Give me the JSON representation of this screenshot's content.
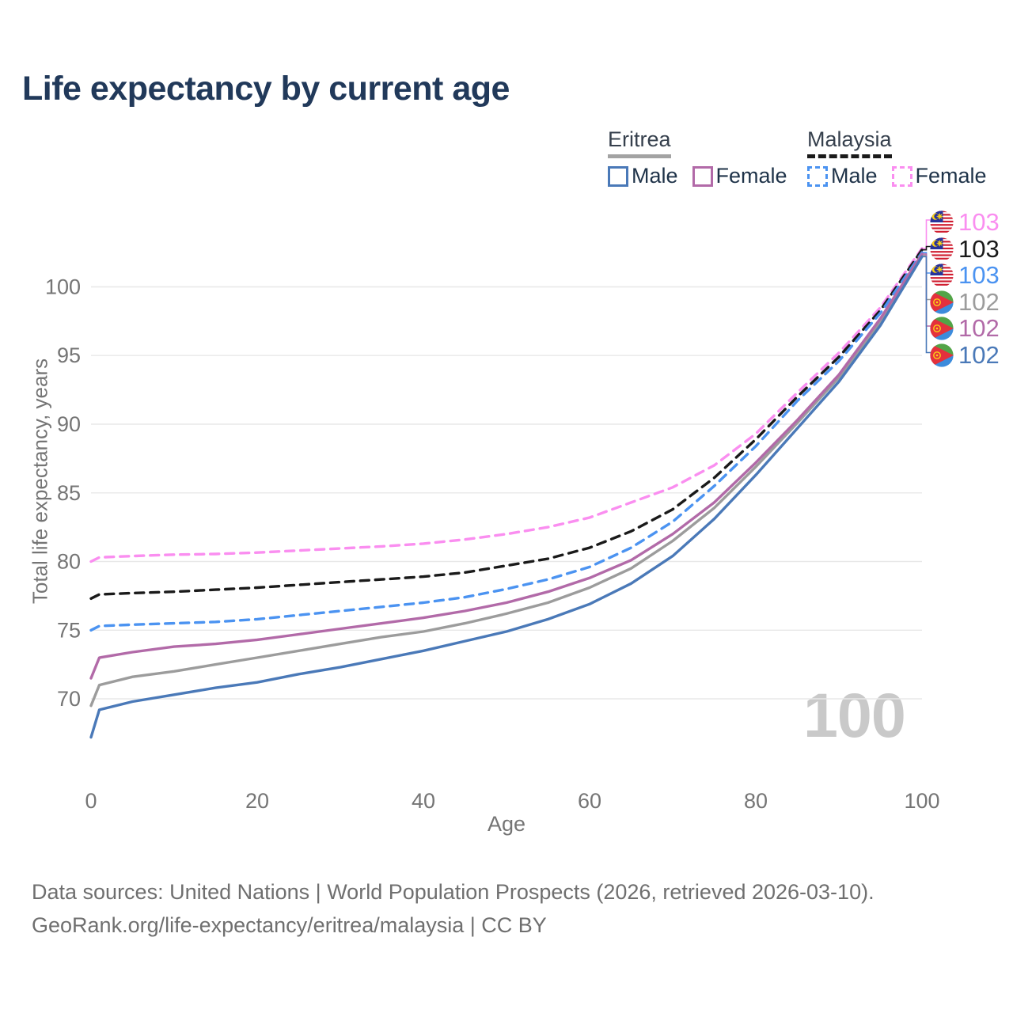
{
  "title": "Life expectancy by current age",
  "legend": {
    "groups": [
      {
        "name": "Eritrea",
        "line_style": "solid",
        "underline_color": "#a3a3a3",
        "items": [
          {
            "label": "Male",
            "color": "#4a79b8"
          },
          {
            "label": "Female",
            "color": "#b26aa8"
          }
        ]
      },
      {
        "name": "Malaysia",
        "line_style": "dashed",
        "underline_color": "#1a1a1a",
        "items": [
          {
            "label": "Male",
            "color": "#4b93f1"
          },
          {
            "label": "Female",
            "color": "#fa8ef0"
          }
        ]
      }
    ]
  },
  "axes": {
    "x": {
      "label": "Age",
      "ticks": [
        0,
        20,
        40,
        60,
        80,
        100
      ],
      "range": [
        0,
        100
      ]
    },
    "y": {
      "label": "Total life expectancy, years",
      "ticks": [
        70,
        75,
        80,
        85,
        90,
        95,
        100
      ],
      "range": [
        67,
        103.5
      ]
    }
  },
  "watermark": "100",
  "end_labels": [
    {
      "flag": "malaysia",
      "value": "103",
      "color": "#fa8ef0"
    },
    {
      "flag": "malaysia",
      "value": "103",
      "color": "#1a1a1a"
    },
    {
      "flag": "malaysia",
      "value": "103",
      "color": "#4b93f1"
    },
    {
      "flag": "eritrea",
      "value": "102",
      "color": "#9c9c9c"
    },
    {
      "flag": "eritrea",
      "value": "102",
      "color": "#b26aa8"
    },
    {
      "flag": "eritrea",
      "value": "102",
      "color": "#4a79b8"
    }
  ],
  "footer": {
    "line1": "Data sources: United Nations | World Population Prospects (2026, retrieved 2026-03-10).",
    "line2": "GeoRank.org/life-expectancy/eritrea/malaysia | CC BY"
  },
  "chart_data": {
    "type": "line",
    "title": "Life expectancy by current age",
    "xlabel": "Age",
    "ylabel": "Total life expectancy, years",
    "x_ticks": [
      0,
      20,
      40,
      60,
      80,
      100
    ],
    "y_ticks": [
      70,
      75,
      80,
      85,
      90,
      95,
      100
    ],
    "xlim": [
      0,
      100
    ],
    "ylim": [
      67,
      103.5
    ],
    "grid": true,
    "legend_position": "top-right",
    "series": [
      {
        "id": "malaysia-female",
        "name": "Malaysia Female",
        "country": "Malaysia",
        "sex": "female",
        "style": "dashed",
        "color": "#fa8ef0",
        "row": 0,
        "end_label": "103",
        "points": [
          [
            0,
            80.0
          ],
          [
            1,
            80.3
          ],
          [
            5,
            80.4
          ],
          [
            10,
            80.5
          ],
          [
            15,
            80.55
          ],
          [
            20,
            80.65
          ],
          [
            25,
            80.8
          ],
          [
            30,
            80.95
          ],
          [
            35,
            81.1
          ],
          [
            40,
            81.3
          ],
          [
            45,
            81.6
          ],
          [
            50,
            82.0
          ],
          [
            55,
            82.5
          ],
          [
            60,
            83.2
          ],
          [
            65,
            84.3
          ],
          [
            70,
            85.4
          ],
          [
            75,
            87.0
          ],
          [
            80,
            89.3
          ],
          [
            85,
            92.3
          ],
          [
            90,
            95.2
          ],
          [
            95,
            98.5
          ],
          [
            100,
            102.8
          ]
        ]
      },
      {
        "id": "malaysia-total",
        "name": "Malaysia Both sexes",
        "country": "Malaysia",
        "sex": "total",
        "style": "dashed",
        "color": "#1a1a1a",
        "row": 1,
        "end_label": "103",
        "points": [
          [
            0,
            77.3
          ],
          [
            1,
            77.6
          ],
          [
            5,
            77.7
          ],
          [
            10,
            77.8
          ],
          [
            15,
            77.95
          ],
          [
            20,
            78.1
          ],
          [
            25,
            78.3
          ],
          [
            30,
            78.5
          ],
          [
            35,
            78.7
          ],
          [
            40,
            78.9
          ],
          [
            45,
            79.2
          ],
          [
            50,
            79.7
          ],
          [
            55,
            80.2
          ],
          [
            60,
            81.0
          ],
          [
            65,
            82.2
          ],
          [
            70,
            83.8
          ],
          [
            75,
            86.1
          ],
          [
            80,
            88.9
          ],
          [
            85,
            92.0
          ],
          [
            90,
            94.9
          ],
          [
            95,
            98.3
          ],
          [
            100,
            102.7
          ]
        ]
      },
      {
        "id": "malaysia-male",
        "name": "Malaysia Male",
        "country": "Malaysia",
        "sex": "male",
        "style": "dashed",
        "color": "#4b93f1",
        "row": 2,
        "end_label": "103",
        "points": [
          [
            0,
            75.0
          ],
          [
            1,
            75.3
          ],
          [
            5,
            75.4
          ],
          [
            10,
            75.5
          ],
          [
            15,
            75.6
          ],
          [
            20,
            75.8
          ],
          [
            25,
            76.1
          ],
          [
            30,
            76.4
          ],
          [
            35,
            76.7
          ],
          [
            40,
            77.0
          ],
          [
            45,
            77.4
          ],
          [
            50,
            78.0
          ],
          [
            55,
            78.7
          ],
          [
            60,
            79.6
          ],
          [
            65,
            81.0
          ],
          [
            70,
            82.9
          ],
          [
            75,
            85.5
          ],
          [
            80,
            88.4
          ],
          [
            85,
            91.7
          ],
          [
            90,
            94.6
          ],
          [
            95,
            98.1
          ],
          [
            100,
            102.5
          ]
        ]
      },
      {
        "id": "eritrea-total",
        "name": "Eritrea Both sexes",
        "country": "Eritrea",
        "sex": "total",
        "style": "solid",
        "color": "#9c9c9c",
        "row": 3,
        "end_label": "102",
        "points": [
          [
            0,
            69.5
          ],
          [
            1,
            71.0
          ],
          [
            5,
            71.6
          ],
          [
            10,
            72.0
          ],
          [
            15,
            72.5
          ],
          [
            20,
            73.0
          ],
          [
            25,
            73.5
          ],
          [
            30,
            74.0
          ],
          [
            35,
            74.5
          ],
          [
            40,
            74.9
          ],
          [
            45,
            75.5
          ],
          [
            50,
            76.2
          ],
          [
            55,
            77.0
          ],
          [
            60,
            78.1
          ],
          [
            65,
            79.5
          ],
          [
            70,
            81.5
          ],
          [
            75,
            83.9
          ],
          [
            80,
            86.9
          ],
          [
            85,
            90.1
          ],
          [
            90,
            93.4
          ],
          [
            95,
            97.5
          ],
          [
            100,
            102.3
          ]
        ]
      },
      {
        "id": "eritrea-female",
        "name": "Eritrea Female",
        "country": "Eritrea",
        "sex": "female",
        "style": "solid",
        "color": "#b26aa8",
        "row": 4,
        "end_label": "102",
        "points": [
          [
            0,
            71.5
          ],
          [
            1,
            73.0
          ],
          [
            5,
            73.4
          ],
          [
            10,
            73.8
          ],
          [
            15,
            74.0
          ],
          [
            20,
            74.3
          ],
          [
            25,
            74.7
          ],
          [
            30,
            75.1
          ],
          [
            35,
            75.5
          ],
          [
            40,
            75.9
          ],
          [
            45,
            76.4
          ],
          [
            50,
            77.0
          ],
          [
            55,
            77.8
          ],
          [
            60,
            78.8
          ],
          [
            65,
            80.1
          ],
          [
            70,
            82.0
          ],
          [
            75,
            84.3
          ],
          [
            80,
            87.2
          ],
          [
            85,
            90.3
          ],
          [
            90,
            93.6
          ],
          [
            95,
            97.7
          ],
          [
            100,
            102.4
          ]
        ]
      },
      {
        "id": "eritrea-male",
        "name": "Eritrea Male",
        "country": "Eritrea",
        "sex": "male",
        "style": "solid",
        "color": "#4a79b8",
        "row": 5,
        "end_label": "102",
        "points": [
          [
            0,
            67.2
          ],
          [
            1,
            69.2
          ],
          [
            5,
            69.8
          ],
          [
            10,
            70.3
          ],
          [
            15,
            70.8
          ],
          [
            20,
            71.2
          ],
          [
            25,
            71.8
          ],
          [
            30,
            72.3
          ],
          [
            35,
            72.9
          ],
          [
            40,
            73.5
          ],
          [
            45,
            74.2
          ],
          [
            50,
            74.9
          ],
          [
            55,
            75.8
          ],
          [
            60,
            76.9
          ],
          [
            65,
            78.4
          ],
          [
            70,
            80.4
          ],
          [
            75,
            83.1
          ],
          [
            80,
            86.3
          ],
          [
            85,
            89.7
          ],
          [
            90,
            93.1
          ],
          [
            95,
            97.2
          ],
          [
            100,
            102.2
          ]
        ]
      }
    ]
  }
}
